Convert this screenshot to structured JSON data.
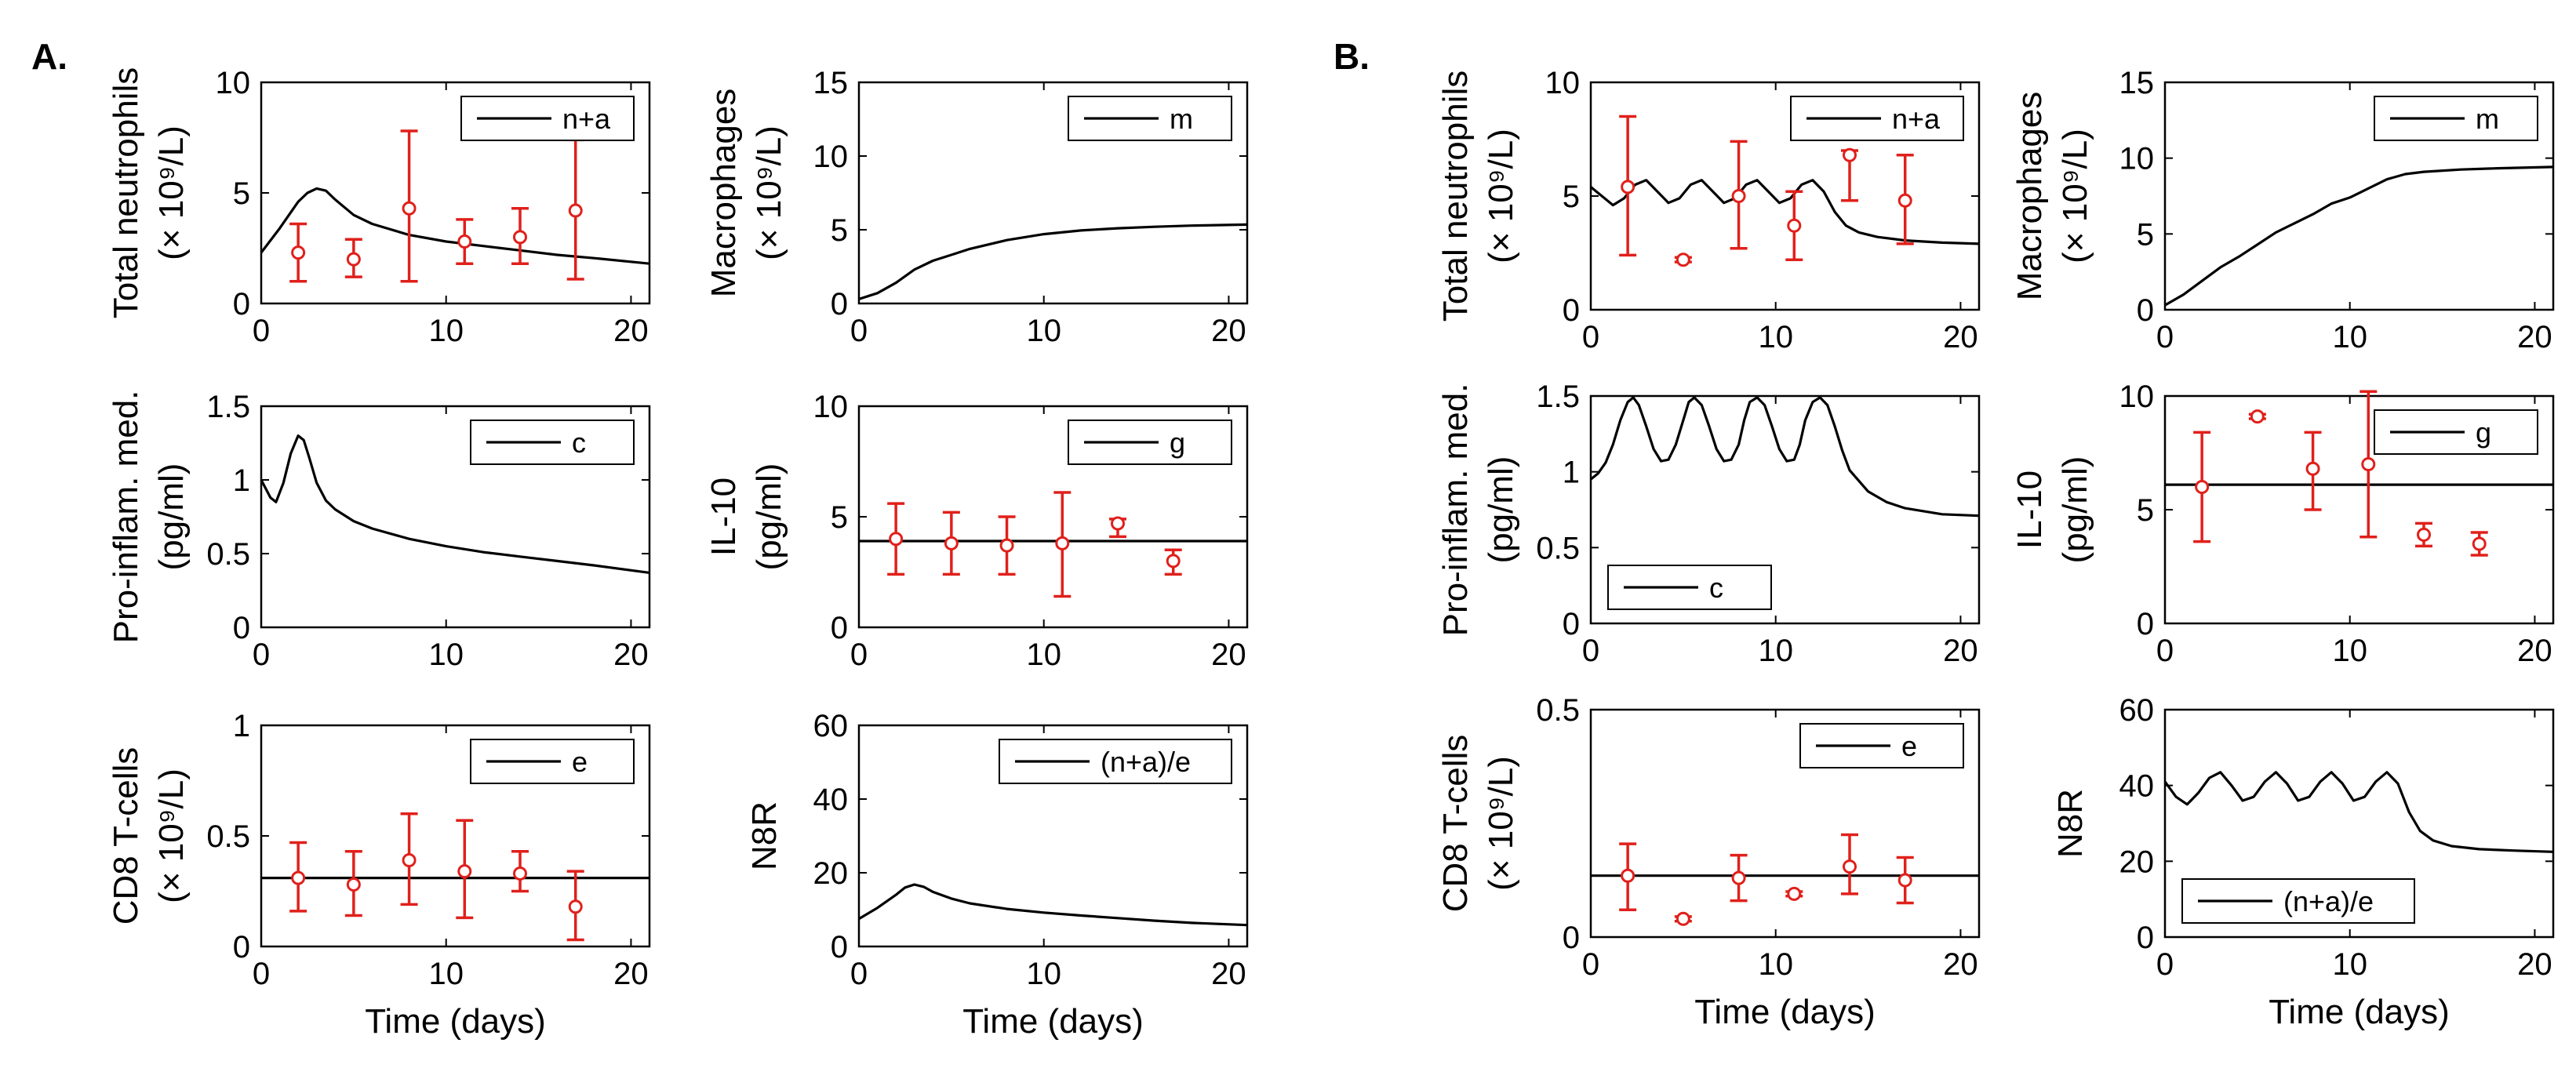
{
  "panels": [
    {
      "letter": "A."
    },
    {
      "letter": "B."
    }
  ],
  "colors": {
    "model": "#000000",
    "data": "#e0201b",
    "axis": "#000000"
  },
  "chart_data": [
    {
      "id": "A-neutrophils",
      "panel": "A.",
      "type": "line",
      "ylabel": [
        "Total neutrophils",
        "(× 10⁹/L)"
      ],
      "xlabel": "",
      "xlim": [
        0,
        21
      ],
      "ylim": [
        0,
        10
      ],
      "xticks": [
        0,
        10,
        20
      ],
      "yticks": [
        0,
        5,
        10
      ],
      "ytick_labels": [
        "0",
        "5",
        "10"
      ],
      "legend": "n+a",
      "legend_location": "top-right",
      "series": [
        {
          "name": "n+a",
          "x": [
            0,
            1,
            2,
            2.5,
            3,
            3.5,
            4,
            5,
            6,
            8,
            10,
            12,
            14,
            16,
            18,
            21
          ],
          "y": [
            2.3,
            3.4,
            4.6,
            5.0,
            5.2,
            5.1,
            4.7,
            4.0,
            3.6,
            3.1,
            2.8,
            2.6,
            2.4,
            2.2,
            2.05,
            1.8
          ]
        }
      ],
      "points": [
        {
          "x": 2,
          "y": 2.3,
          "lo": 1.0,
          "hi": 3.6
        },
        {
          "x": 5,
          "y": 2.0,
          "lo": 1.2,
          "hi": 2.9
        },
        {
          "x": 8,
          "y": 4.3,
          "lo": 1.0,
          "hi": 7.8
        },
        {
          "x": 11,
          "y": 2.8,
          "lo": 1.8,
          "hi": 3.8
        },
        {
          "x": 14,
          "y": 3.0,
          "lo": 1.8,
          "hi": 4.3
        },
        {
          "x": 17,
          "y": 4.2,
          "lo": 1.1,
          "hi": 7.4
        }
      ]
    },
    {
      "id": "A-macrophages",
      "panel": "A.",
      "type": "line",
      "ylabel": [
        "Macrophages",
        "(× 10⁹/L)"
      ],
      "xlabel": "",
      "xlim": [
        0,
        21
      ],
      "ylim": [
        0,
        15
      ],
      "xticks": [
        0,
        10,
        20
      ],
      "yticks": [
        0,
        5,
        10,
        15
      ],
      "ytick_labels": [
        "0",
        "5",
        "10",
        "15"
      ],
      "legend": "m",
      "legend_location": "top-right",
      "series": [
        {
          "name": "m",
          "x": [
            0,
            1,
            2,
            3,
            4,
            5,
            6,
            8,
            10,
            12,
            14,
            16,
            18,
            21
          ],
          "y": [
            0.3,
            0.7,
            1.4,
            2.3,
            2.9,
            3.3,
            3.7,
            4.3,
            4.7,
            4.95,
            5.1,
            5.2,
            5.28,
            5.35
          ]
        }
      ],
      "points": []
    },
    {
      "id": "A-proinflam",
      "panel": "A.",
      "type": "line",
      "ylabel": [
        "Pro-inflam. med.",
        "(pg/ml)"
      ],
      "xlabel": "",
      "xlim": [
        0,
        21
      ],
      "ylim": [
        0,
        1.5
      ],
      "xticks": [
        0,
        10,
        20
      ],
      "yticks": [
        0,
        0.5,
        1,
        1.5
      ],
      "ytick_labels": [
        "0",
        "0.5",
        "1",
        "1.5"
      ],
      "legend": "c",
      "legend_location": "top-right",
      "series": [
        {
          "name": "c",
          "x": [
            0,
            0.5,
            0.8,
            1.2,
            1.6,
            2.0,
            2.3,
            2.6,
            3.0,
            3.5,
            4,
            5,
            6,
            8,
            10,
            12,
            14,
            16,
            18,
            21
          ],
          "y": [
            1.0,
            0.88,
            0.85,
            0.98,
            1.18,
            1.3,
            1.27,
            1.15,
            0.98,
            0.86,
            0.8,
            0.72,
            0.67,
            0.6,
            0.55,
            0.51,
            0.48,
            0.45,
            0.42,
            0.37
          ]
        }
      ],
      "points": []
    },
    {
      "id": "A-il10",
      "panel": "A.",
      "type": "line",
      "ylabel": [
        "IL-10",
        "(pg/ml)"
      ],
      "xlabel": "",
      "xlim": [
        0,
        21
      ],
      "ylim": [
        0,
        10
      ],
      "xticks": [
        0,
        10,
        20
      ],
      "yticks": [
        0,
        5,
        10
      ],
      "ytick_labels": [
        "0",
        "5",
        "10"
      ],
      "legend": "g",
      "legend_location": "top-right",
      "series": [
        {
          "name": "g",
          "x": [
            0,
            21
          ],
          "y": [
            3.9,
            3.9
          ]
        }
      ],
      "points": [
        {
          "x": 2,
          "y": 4.0,
          "lo": 2.4,
          "hi": 5.6
        },
        {
          "x": 5,
          "y": 3.8,
          "lo": 2.4,
          "hi": 5.2
        },
        {
          "x": 8,
          "y": 3.7,
          "lo": 2.4,
          "hi": 5.0
        },
        {
          "x": 11,
          "y": 3.8,
          "lo": 1.4,
          "hi": 6.1
        },
        {
          "x": 14,
          "y": 4.7,
          "lo": 4.1,
          "hi": 4.9
        },
        {
          "x": 17,
          "y": 3.0,
          "lo": 2.4,
          "hi": 3.5
        }
      ]
    },
    {
      "id": "A-cd8",
      "panel": "A.",
      "type": "line",
      "ylabel": [
        "CD8 T-cells",
        "(× 10⁹/L)"
      ],
      "xlabel": "Time (days)",
      "xlim": [
        0,
        21
      ],
      "ylim": [
        0,
        1
      ],
      "xticks": [
        0,
        10,
        20
      ],
      "yticks": [
        0,
        0.5,
        1
      ],
      "ytick_labels": [
        "0",
        "0.5",
        "1"
      ],
      "legend": "e",
      "legend_location": "top-right",
      "series": [
        {
          "name": "e",
          "x": [
            0,
            21
          ],
          "y": [
            0.31,
            0.31
          ]
        }
      ],
      "points": [
        {
          "x": 2,
          "y": 0.31,
          "lo": 0.16,
          "hi": 0.47
        },
        {
          "x": 5,
          "y": 0.28,
          "lo": 0.14,
          "hi": 0.43
        },
        {
          "x": 8,
          "y": 0.39,
          "lo": 0.19,
          "hi": 0.6
        },
        {
          "x": 11,
          "y": 0.34,
          "lo": 0.13,
          "hi": 0.57
        },
        {
          "x": 14,
          "y": 0.33,
          "lo": 0.25,
          "hi": 0.43
        },
        {
          "x": 17,
          "y": 0.18,
          "lo": 0.03,
          "hi": 0.34
        }
      ]
    },
    {
      "id": "A-n8r",
      "panel": "A.",
      "type": "line",
      "ylabel": [
        "N8R"
      ],
      "xlabel": "Time (days)",
      "xlim": [
        0,
        21
      ],
      "ylim": [
        0,
        60
      ],
      "xticks": [
        0,
        10,
        20
      ],
      "yticks": [
        0,
        20,
        40,
        60
      ],
      "ytick_labels": [
        "0",
        "20",
        "40",
        "60"
      ],
      "legend": "(n+a)/e",
      "legend_location": "top-right",
      "series": [
        {
          "name": "(n+a)/e",
          "x": [
            0,
            1,
            2,
            2.5,
            3,
            3.5,
            4,
            5,
            6,
            8,
            10,
            12,
            14,
            16,
            18,
            21
          ],
          "y": [
            7.5,
            10.5,
            14,
            16,
            16.8,
            16.2,
            14.8,
            13,
            11.7,
            10.2,
            9.2,
            8.4,
            7.7,
            7.0,
            6.4,
            5.8
          ]
        }
      ],
      "points": []
    },
    {
      "id": "B-neutrophils",
      "panel": "B.",
      "type": "line",
      "ylabel": [
        "Total neutrophils",
        "(× 10⁹/L)"
      ],
      "xlabel": "",
      "xlim": [
        0,
        21
      ],
      "ylim": [
        0,
        10
      ],
      "xticks": [
        0,
        10,
        20
      ],
      "yticks": [
        0,
        5,
        10
      ],
      "ytick_labels": [
        "0",
        "5",
        "10"
      ],
      "legend": "n+a",
      "legend_location": "top-right",
      "series": [
        {
          "name": "n+a",
          "x": [
            0,
            0.6,
            1.2,
            1.8,
            2.4,
            3.0,
            3.6,
            4.2,
            4.8,
            5.4,
            6.0,
            6.6,
            7.2,
            7.8,
            8.4,
            9.0,
            9.6,
            10.2,
            10.8,
            11.4,
            12.0,
            12.6,
            13.2,
            13.8,
            14.5,
            15.5,
            17,
            19,
            21
          ],
          "y": [
            5.4,
            5.0,
            4.6,
            4.9,
            5.5,
            5.7,
            5.2,
            4.7,
            4.9,
            5.5,
            5.7,
            5.2,
            4.7,
            4.9,
            5.5,
            5.7,
            5.2,
            4.7,
            4.9,
            5.5,
            5.7,
            5.2,
            4.3,
            3.7,
            3.4,
            3.2,
            3.05,
            2.95,
            2.9
          ]
        }
      ],
      "points": [
        {
          "x": 2,
          "y": 5.4,
          "lo": 2.4,
          "hi": 8.5
        },
        {
          "x": 5,
          "y": 2.2,
          "lo": 2.1,
          "hi": 2.3
        },
        {
          "x": 8,
          "y": 5.0,
          "lo": 2.7,
          "hi": 7.4
        },
        {
          "x": 11,
          "y": 3.7,
          "lo": 2.2,
          "hi": 5.2
        },
        {
          "x": 14,
          "y": 6.8,
          "lo": 4.8,
          "hi": 7.0
        },
        {
          "x": 17,
          "y": 4.8,
          "lo": 2.9,
          "hi": 6.8
        }
      ]
    },
    {
      "id": "B-macrophages",
      "panel": "B.",
      "type": "line",
      "ylabel": [
        "Macrophages",
        "(× 10⁹/L)"
      ],
      "xlabel": "",
      "xlim": [
        0,
        21
      ],
      "ylim": [
        0,
        15
      ],
      "xticks": [
        0,
        10,
        20
      ],
      "yticks": [
        0,
        5,
        10,
        15
      ],
      "ytick_labels": [
        "0",
        "5",
        "10",
        "15"
      ],
      "legend": "m",
      "legend_location": "top-right",
      "series": [
        {
          "name": "m",
          "x": [
            0,
            1,
            2,
            3,
            4,
            5,
            6,
            7,
            8,
            9,
            10,
            11,
            12,
            13,
            14,
            16,
            18,
            21
          ],
          "y": [
            0.3,
            1.0,
            1.9,
            2.8,
            3.5,
            4.3,
            5.1,
            5.7,
            6.3,
            7.0,
            7.4,
            8.0,
            8.6,
            8.95,
            9.1,
            9.25,
            9.33,
            9.42
          ]
        }
      ],
      "points": []
    },
    {
      "id": "B-proinflam",
      "panel": "B.",
      "type": "line",
      "ylabel": [
        "Pro-inflam. med.",
        "(pg/ml)"
      ],
      "xlabel": "",
      "xlim": [
        0,
        21
      ],
      "ylim": [
        0,
        1.5
      ],
      "xticks": [
        0,
        10,
        20
      ],
      "yticks": [
        0,
        0.5,
        1,
        1.5
      ],
      "ytick_labels": [
        "0",
        "0.5",
        "1",
        "1.5"
      ],
      "legend": "c",
      "legend_location": "bottom-left",
      "series": [
        {
          "name": "c",
          "x": [
            0,
            0.4,
            0.8,
            1.2,
            1.6,
            2.0,
            2.3,
            2.6,
            3.0,
            3.4,
            3.8,
            4.2,
            4.6,
            5.0,
            5.3,
            5.6,
            6.0,
            6.4,
            6.8,
            7.2,
            7.6,
            8.0,
            8.3,
            8.6,
            9.0,
            9.4,
            9.8,
            10.2,
            10.6,
            11.0,
            11.3,
            11.6,
            12.0,
            12.4,
            12.8,
            13.2,
            13.6,
            14.0,
            15,
            16,
            17,
            18,
            19,
            21
          ],
          "y": [
            0.95,
            0.99,
            1.06,
            1.18,
            1.34,
            1.46,
            1.49,
            1.44,
            1.3,
            1.15,
            1.07,
            1.08,
            1.18,
            1.34,
            1.46,
            1.49,
            1.44,
            1.3,
            1.15,
            1.07,
            1.08,
            1.18,
            1.34,
            1.46,
            1.49,
            1.44,
            1.3,
            1.15,
            1.07,
            1.08,
            1.18,
            1.34,
            1.46,
            1.49,
            1.44,
            1.3,
            1.14,
            1.01,
            0.87,
            0.8,
            0.76,
            0.74,
            0.72,
            0.71
          ]
        }
      ],
      "points": []
    },
    {
      "id": "B-il10",
      "panel": "B.",
      "type": "line",
      "ylabel": [
        "IL-10",
        "(pg/ml)"
      ],
      "xlabel": "",
      "xlim": [
        0,
        21
      ],
      "ylim": [
        0,
        10
      ],
      "xticks": [
        0,
        10,
        20
      ],
      "yticks": [
        0,
        5,
        10
      ],
      "ytick_labels": [
        "0",
        "5",
        "10"
      ],
      "legend": "g",
      "legend_location": "top-right",
      "series": [
        {
          "name": "g",
          "x": [
            0,
            21
          ],
          "y": [
            6.1,
            6.1
          ]
        }
      ],
      "points": [
        {
          "x": 2,
          "y": 6.0,
          "lo": 3.6,
          "hi": 8.4
        },
        {
          "x": 5,
          "y": 9.1,
          "lo": 9.0,
          "hi": 9.2
        },
        {
          "x": 8,
          "y": 6.8,
          "lo": 5.0,
          "hi": 8.4
        },
        {
          "x": 11,
          "y": 7.0,
          "lo": 3.8,
          "hi": 10.3
        },
        {
          "x": 14,
          "y": 3.9,
          "lo": 3.4,
          "hi": 4.4
        },
        {
          "x": 17,
          "y": 3.5,
          "lo": 3.0,
          "hi": 4.0
        }
      ]
    },
    {
      "id": "B-cd8",
      "panel": "B.",
      "type": "line",
      "ylabel": [
        "CD8 T-cells",
        "(× 10⁹/L)"
      ],
      "xlabel": "Time (days)",
      "xlim": [
        0,
        21
      ],
      "ylim": [
        0,
        0.5
      ],
      "xticks": [
        0,
        10,
        20
      ],
      "yticks": [
        0,
        0.5
      ],
      "ytick_labels": [
        "0",
        "0.5"
      ],
      "legend": "e",
      "legend_location": "top-right",
      "series": [
        {
          "name": "e",
          "x": [
            0,
            21
          ],
          "y": [
            0.135,
            0.135
          ]
        }
      ],
      "points": [
        {
          "x": 2,
          "y": 0.135,
          "lo": 0.06,
          "hi": 0.205
        },
        {
          "x": 5,
          "y": 0.04,
          "lo": 0.035,
          "hi": 0.045
        },
        {
          "x": 8,
          "y": 0.13,
          "lo": 0.08,
          "hi": 0.18
        },
        {
          "x": 11,
          "y": 0.095,
          "lo": 0.09,
          "hi": 0.1
        },
        {
          "x": 14,
          "y": 0.155,
          "lo": 0.095,
          "hi": 0.225
        },
        {
          "x": 17,
          "y": 0.125,
          "lo": 0.075,
          "hi": 0.175
        }
      ]
    },
    {
      "id": "B-n8r",
      "panel": "B.",
      "type": "line",
      "ylabel": [
        "N8R"
      ],
      "xlabel": "Time (days)",
      "xlim": [
        0,
        21
      ],
      "ylim": [
        0,
        60
      ],
      "xticks": [
        0,
        10,
        20
      ],
      "yticks": [
        0,
        20,
        40,
        60
      ],
      "ytick_labels": [
        "0",
        "20",
        "40",
        "60"
      ],
      "legend": "(n+a)/e",
      "legend_location": "bottom-left",
      "series": [
        {
          "name": "(n+a)/e",
          "x": [
            0,
            0.6,
            1.2,
            1.8,
            2.4,
            3.0,
            3.6,
            4.2,
            4.8,
            5.4,
            6.0,
            6.6,
            7.2,
            7.8,
            8.4,
            9.0,
            9.6,
            10.2,
            10.8,
            11.4,
            12.0,
            12.6,
            13.2,
            13.8,
            14.5,
            15.5,
            17,
            19,
            21
          ],
          "y": [
            41,
            37,
            35,
            38,
            42,
            43.5,
            40,
            36,
            37,
            41,
            43.5,
            40.5,
            36,
            37,
            41,
            43.5,
            40.5,
            36,
            37,
            41,
            43.5,
            40.5,
            33,
            28,
            25.5,
            24,
            23.2,
            22.8,
            22.5
          ]
        }
      ],
      "points": []
    }
  ]
}
